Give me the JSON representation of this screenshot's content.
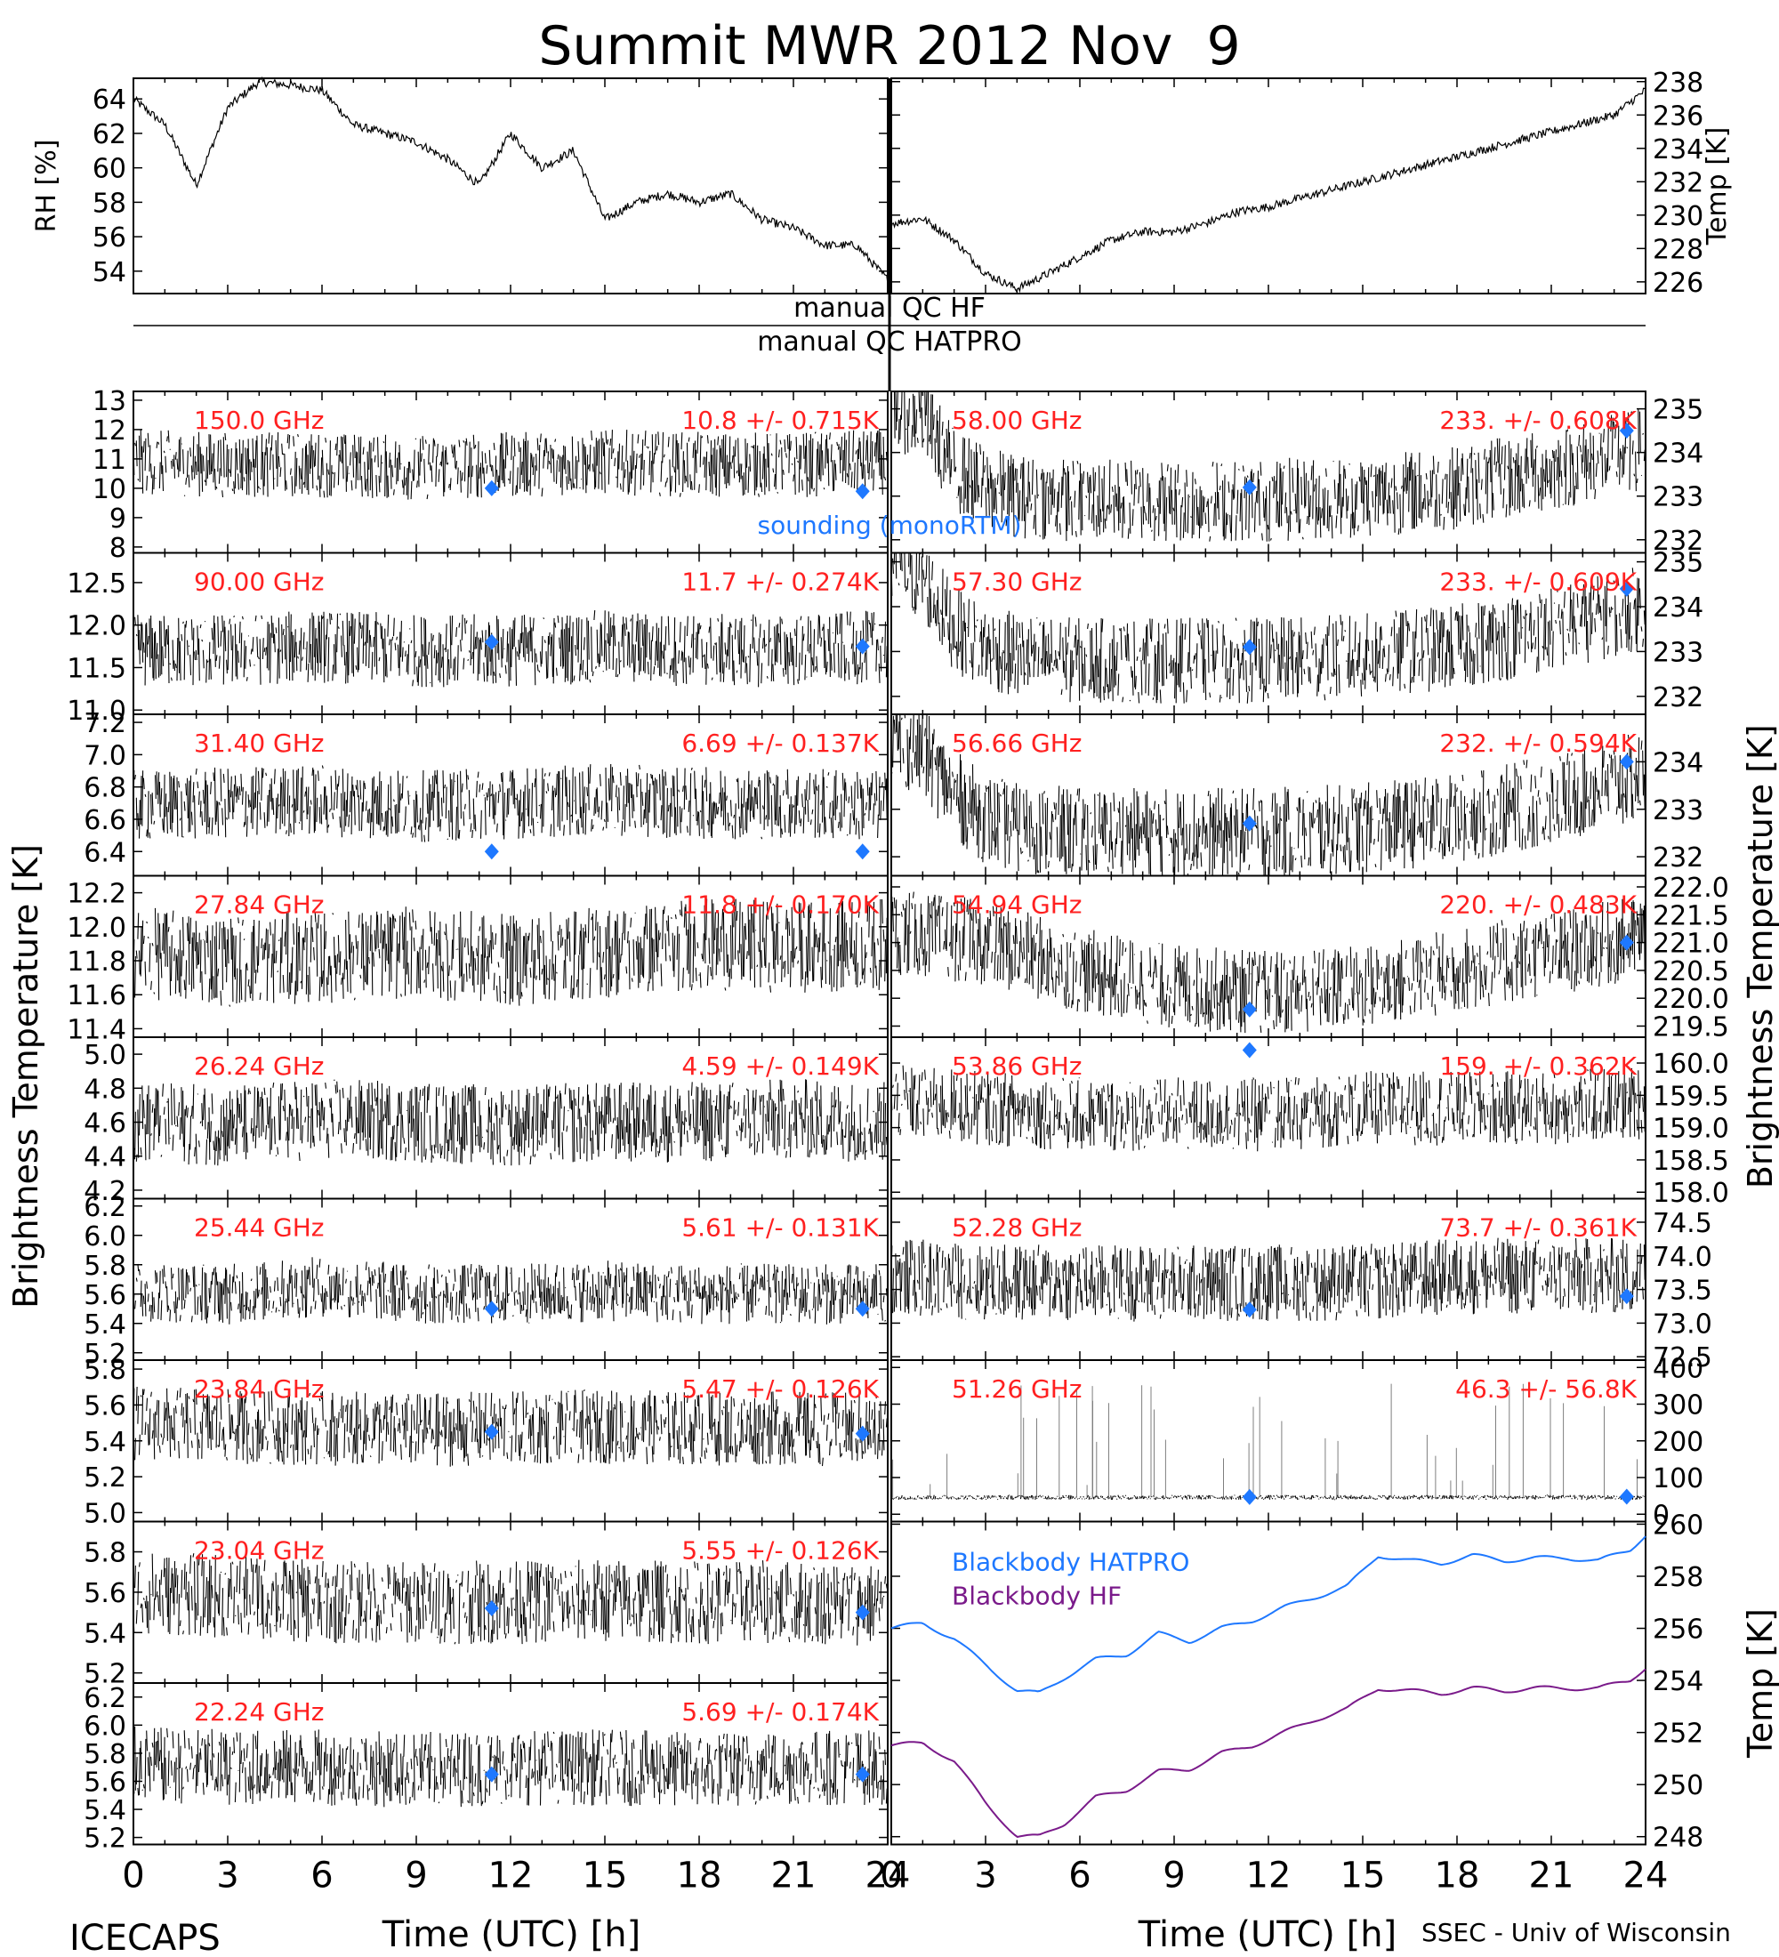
{
  "title": "Summit MWR 2012 Nov  9",
  "footer": {
    "left": "ICECAPS",
    "right": "SSEC - Univ of Wisconsin",
    "xlabel": "Time (UTC) [h]"
  },
  "ylabel_left": "Brightness Temperature [K]",
  "ylabel_right": "Brightness Temperature [K]",
  "qc_labels": {
    "hf": "manual QC HF",
    "hatpro": "manual QC HATPRO"
  },
  "sounding_label": "sounding (monoRTM)",
  "colors": {
    "trace": "#000000",
    "label": "#ff2020",
    "sounding": "#1e78ff",
    "bb_hatpro": "#1e78ff",
    "bb_hf": "#7a1a8a"
  },
  "chart_data": [
    {
      "type": "line",
      "panel": "met-left",
      "ylabel": "RH [%]",
      "xlim": [
        0,
        24
      ],
      "ylim": [
        52.7,
        65.2
      ],
      "yticks": [
        54,
        56,
        58,
        60,
        62,
        64
      ],
      "x": [
        0,
        1,
        2,
        3,
        4,
        5,
        6,
        7,
        8,
        9,
        10,
        11,
        12,
        13,
        14,
        15,
        16,
        17,
        18,
        19,
        20,
        21,
        22,
        23,
        24
      ],
      "values": [
        64,
        62.5,
        59,
        63.5,
        65,
        64.8,
        64.5,
        62.5,
        62,
        61.5,
        60.5,
        59,
        62,
        60,
        61,
        57,
        58,
        58.5,
        58,
        58.5,
        57,
        56.5,
        55.5,
        55.5,
        53.5
      ]
    },
    {
      "type": "line",
      "panel": "met-right",
      "ylabel": "Temp [K]",
      "xlim": [
        0,
        24
      ],
      "ylim": [
        225.3,
        238.2
      ],
      "yticks": [
        226,
        228,
        230,
        232,
        234,
        236,
        238
      ],
      "x": [
        0,
        1,
        2,
        3,
        4,
        5,
        6,
        7,
        8,
        9,
        10,
        11,
        12,
        13,
        14,
        15,
        16,
        17,
        18,
        19,
        20,
        21,
        22,
        23,
        24
      ],
      "values": [
        229.5,
        229.8,
        228.5,
        226.5,
        225.6,
        226.5,
        227.5,
        228.5,
        229,
        229,
        229.5,
        230.2,
        230.5,
        231,
        231.5,
        232,
        232.5,
        233,
        233.5,
        234,
        234.5,
        235,
        235.5,
        236,
        237.5
      ]
    },
    {
      "type": "scatter",
      "panel": "ch-150",
      "freq": "150.0 GHz",
      "stat": "10.8 +/- 0.715K",
      "xlim": [
        0,
        24
      ],
      "ylim": [
        7.8,
        13.3
      ],
      "yticks": [
        "8",
        "9",
        "10",
        "11",
        "12",
        "13"
      ],
      "x": [
        0,
        3,
        6,
        9,
        12,
        15,
        18,
        21,
        24
      ],
      "values": [
        10.9,
        10.8,
        10.8,
        10.7,
        10.8,
        10.9,
        10.8,
        10.8,
        10.9
      ],
      "noise": 0.7,
      "sounding": [
        [
          11.4,
          10.0
        ],
        [
          23.2,
          9.9
        ]
      ]
    },
    {
      "type": "scatter",
      "panel": "ch-90",
      "freq": "90.00 GHz",
      "stat": "11.7 +/- 0.274K",
      "xlim": [
        0,
        24
      ],
      "ylim": [
        10.95,
        12.85
      ],
      "yticks": [
        "11.0",
        "11.5",
        "12.0",
        "12.5"
      ],
      "x": [
        0,
        3,
        6,
        9,
        12,
        15,
        18,
        21,
        24
      ],
      "values": [
        11.7,
        11.7,
        11.75,
        11.7,
        11.7,
        11.75,
        11.7,
        11.7,
        11.75
      ],
      "noise": 0.27,
      "sounding": [
        [
          11.4,
          11.8
        ],
        [
          23.2,
          11.75
        ]
      ]
    },
    {
      "type": "scatter",
      "panel": "ch-31",
      "freq": "31.40 GHz",
      "stat": "6.69 +/- 0.137K",
      "xlim": [
        0,
        24
      ],
      "ylim": [
        6.25,
        7.25
      ],
      "yticks": [
        "6.4",
        "6.6",
        "6.8",
        "7.0",
        "7.2"
      ],
      "x": [
        0,
        3,
        6,
        9,
        12,
        15,
        18,
        21,
        24
      ],
      "values": [
        6.68,
        6.7,
        6.72,
        6.68,
        6.7,
        6.72,
        6.7,
        6.7,
        6.68
      ],
      "noise": 0.14,
      "sounding": [
        [
          11.4,
          6.4
        ],
        [
          23.2,
          6.4
        ]
      ]
    },
    {
      "type": "scatter",
      "panel": "ch-27",
      "freq": "27.84 GHz",
      "stat": "11.8 +/- 0.170K",
      "xlim": [
        0,
        24
      ],
      "ylim": [
        11.35,
        12.3
      ],
      "yticks": [
        "11.4",
        "11.6",
        "11.8",
        "12.0",
        "12.2"
      ],
      "x": [
        0,
        3,
        6,
        9,
        12,
        15,
        18,
        21,
        24
      ],
      "values": [
        11.85,
        11.8,
        11.82,
        11.85,
        11.8,
        11.85,
        11.9,
        11.88,
        11.9
      ],
      "noise": 0.17,
      "sounding": []
    },
    {
      "type": "scatter",
      "panel": "ch-26",
      "freq": "26.24 GHz",
      "stat": "4.59 +/- 0.149K",
      "xlim": [
        0,
        24
      ],
      "ylim": [
        4.15,
        5.1
      ],
      "yticks": [
        "4.2",
        "4.4",
        "4.6",
        "4.8",
        "5.0"
      ],
      "x": [
        0,
        3,
        6,
        9,
        12,
        15,
        18,
        21,
        24
      ],
      "values": [
        4.6,
        4.58,
        4.62,
        4.6,
        4.58,
        4.6,
        4.6,
        4.62,
        4.6
      ],
      "noise": 0.15,
      "sounding": []
    },
    {
      "type": "scatter",
      "panel": "ch-25",
      "freq": "25.44 GHz",
      "stat": "5.61 +/- 0.131K",
      "xlim": [
        0,
        24
      ],
      "ylim": [
        5.15,
        6.25
      ],
      "yticks": [
        "5.2",
        "5.4",
        "5.6",
        "5.8",
        "6.0",
        "6.2"
      ],
      "x": [
        0,
        3,
        6,
        9,
        12,
        15,
        18,
        21,
        24
      ],
      "values": [
        5.62,
        5.6,
        5.65,
        5.6,
        5.6,
        5.62,
        5.6,
        5.6,
        5.6
      ],
      "noise": 0.13,
      "sounding": [
        [
          11.4,
          5.5
        ],
        [
          23.2,
          5.5
        ]
      ]
    },
    {
      "type": "scatter",
      "panel": "ch-23.84",
      "freq": "23.84 GHz",
      "stat": "5.47 +/- 0.126K",
      "xlim": [
        0,
        24
      ],
      "ylim": [
        4.95,
        5.85
      ],
      "yticks": [
        "5.0",
        "5.2",
        "5.4",
        "5.6",
        "5.8"
      ],
      "x": [
        0,
        3,
        6,
        9,
        12,
        15,
        18,
        21,
        24
      ],
      "values": [
        5.5,
        5.48,
        5.47,
        5.46,
        5.47,
        5.48,
        5.47,
        5.47,
        5.46
      ],
      "noise": 0.13,
      "sounding": [
        [
          11.4,
          5.45
        ],
        [
          23.2,
          5.44
        ]
      ]
    },
    {
      "type": "scatter",
      "panel": "ch-23.04",
      "freq": "23.04 GHz",
      "stat": "5.55 +/- 0.126K",
      "xlim": [
        0,
        24
      ],
      "ylim": [
        5.15,
        5.95
      ],
      "yticks": [
        "5.2",
        "5.4",
        "5.6",
        "5.8"
      ],
      "x": [
        0,
        3,
        6,
        9,
        12,
        15,
        18,
        21,
        24
      ],
      "values": [
        5.6,
        5.58,
        5.55,
        5.55,
        5.55,
        5.56,
        5.55,
        5.55,
        5.54
      ],
      "noise": 0.13,
      "sounding": [
        [
          11.4,
          5.52
        ],
        [
          23.2,
          5.5
        ]
      ]
    },
    {
      "type": "scatter",
      "panel": "ch-22.24",
      "freq": "22.24 GHz",
      "stat": "5.69 +/- 0.174K",
      "xlim": [
        0,
        24
      ],
      "ylim": [
        5.15,
        6.3
      ],
      "yticks": [
        "5.2",
        "5.4",
        "5.6",
        "5.8",
        "6.0",
        "6.2"
      ],
      "x": [
        0,
        3,
        6,
        9,
        12,
        15,
        18,
        21,
        24
      ],
      "values": [
        5.72,
        5.7,
        5.7,
        5.68,
        5.7,
        5.7,
        5.68,
        5.7,
        5.7
      ],
      "noise": 0.17,
      "sounding": [
        [
          11.4,
          5.65
        ],
        [
          23.2,
          5.65
        ]
      ]
    },
    {
      "type": "scatter",
      "panel": "ch-58",
      "freq": "58.00 GHz",
      "stat": "233. +/- 0.608K",
      "xlim": [
        0,
        24
      ],
      "ylim": [
        231.7,
        235.4
      ],
      "yticks": [
        "232",
        "233",
        "234",
        "235"
      ],
      "x": [
        0,
        1,
        2,
        3,
        4,
        6,
        9,
        12,
        15,
        18,
        21,
        24
      ],
      "values": [
        235,
        234.8,
        233.6,
        233.2,
        233.0,
        232.9,
        232.9,
        232.9,
        233.0,
        233.2,
        233.6,
        234.1
      ],
      "noise": 0.6,
      "sounding": [
        [
          11.4,
          233.2
        ],
        [
          23.4,
          234.5
        ]
      ]
    },
    {
      "type": "scatter",
      "panel": "ch-57.3",
      "freq": "57.30 GHz",
      "stat": "233. +/- 0.609K",
      "xlim": [
        0,
        24
      ],
      "ylim": [
        231.6,
        235.2
      ],
      "yticks": [
        "232",
        "233",
        "234",
        "235"
      ],
      "x": [
        0,
        1,
        2,
        3,
        4,
        6,
        9,
        12,
        15,
        18,
        21,
        24
      ],
      "values": [
        234.9,
        234.6,
        233.5,
        233.1,
        232.9,
        232.8,
        232.8,
        232.8,
        232.9,
        233.1,
        233.5,
        234.0
      ],
      "noise": 0.6,
      "sounding": [
        [
          11.4,
          233.1
        ],
        [
          23.4,
          234.4
        ]
      ]
    },
    {
      "type": "scatter",
      "panel": "ch-56.66",
      "freq": "56.66 GHz",
      "stat": "232. +/- 0.594K",
      "xlim": [
        0,
        24
      ],
      "ylim": [
        231.6,
        235.0
      ],
      "yticks": [
        "232",
        "233",
        "234"
      ],
      "x": [
        0,
        1,
        2,
        3,
        4,
        6,
        9,
        12,
        15,
        18,
        21,
        24
      ],
      "values": [
        234.5,
        234.2,
        233.3,
        232.8,
        232.6,
        232.5,
        232.5,
        232.5,
        232.6,
        232.8,
        233.2,
        233.7
      ],
      "noise": 0.6,
      "sounding": [
        [
          11.4,
          232.7
        ],
        [
          23.4,
          234.0
        ]
      ]
    },
    {
      "type": "scatter",
      "panel": "ch-54.94",
      "freq": "54.94 GHz",
      "stat": "220. +/- 0.483K",
      "xlim": [
        0,
        24
      ],
      "ylim": [
        219.3,
        222.2
      ],
      "yticks": [
        "219.5",
        "220.0",
        "220.5",
        "221.0",
        "221.5",
        "222.0"
      ],
      "x": [
        0,
        3,
        6,
        9,
        12,
        15,
        18,
        21,
        24
      ],
      "values": [
        221.2,
        221.0,
        220.5,
        220.2,
        220.1,
        220.2,
        220.5,
        220.8,
        221.1
      ],
      "noise": 0.48,
      "sounding": [
        [
          11.4,
          219.8
        ],
        [
          23.4,
          221.0
        ]
      ]
    },
    {
      "type": "scatter",
      "panel": "ch-53.86",
      "freq": "53.86 GHz",
      "stat": "159. +/- 0.362K",
      "xlim": [
        0,
        24
      ],
      "ylim": [
        157.9,
        160.4
      ],
      "yticks": [
        "158.0",
        "158.5",
        "159.0",
        "159.5",
        "160.0"
      ],
      "x": [
        0,
        3,
        6,
        9,
        12,
        15,
        18,
        21,
        24
      ],
      "values": [
        159.4,
        159.3,
        159.2,
        159.2,
        159.2,
        159.3,
        159.3,
        159.3,
        159.4
      ],
      "noise": 0.36,
      "sounding": [
        [
          11.4,
          160.2
        ]
      ]
    },
    {
      "type": "scatter",
      "panel": "ch-52.28",
      "freq": "52.28 GHz",
      "stat": "73.7 +/- 0.361K",
      "xlim": [
        0,
        24
      ],
      "ylim": [
        72.45,
        74.85
      ],
      "yticks": [
        "72.5",
        "73.0",
        "73.5",
        "74.0",
        "74.5"
      ],
      "x": [
        0,
        3,
        6,
        9,
        12,
        15,
        18,
        21,
        24
      ],
      "values": [
        73.7,
        73.6,
        73.6,
        73.6,
        73.6,
        73.6,
        73.7,
        73.7,
        73.7
      ],
      "noise": 0.36,
      "sounding": [
        [
          11.4,
          73.2
        ],
        [
          23.4,
          73.4
        ]
      ]
    },
    {
      "type": "scatter",
      "panel": "ch-51.26",
      "freq": "51.26 GHz",
      "stat": "46.3 +/- 56.8K",
      "xlim": [
        0,
        24
      ],
      "ylim": [
        -20,
        420
      ],
      "yticks": [
        "0",
        "100",
        "200",
        "300",
        "400"
      ],
      "x": [
        0,
        24
      ],
      "values": [
        46,
        46
      ],
      "noise": 4,
      "sounding": [
        [
          11.4,
          47
        ],
        [
          23.4,
          48
        ]
      ]
    },
    {
      "type": "line",
      "panel": "blackbody",
      "ylabel": "Temp [K]",
      "xlim": [
        0,
        24
      ],
      "ylim": [
        247.7,
        260.1
      ],
      "yticks": [
        "248",
        "250",
        "252",
        "254",
        "256",
        "258",
        "260"
      ],
      "series": [
        {
          "name": "Blackbody HATPRO",
          "x": [
            0,
            1,
            2,
            3,
            4,
            4.7,
            5.5,
            6.5,
            7.5,
            8.5,
            9.5,
            10.5,
            11.5,
            12.5,
            13.5,
            14.5,
            15.5,
            16.5,
            17.5,
            18.5,
            19.5,
            20.5,
            21.5,
            22.5,
            23.5,
            24
          ],
          "values": [
            256,
            256.2,
            255.6,
            254.6,
            253.6,
            253.5,
            254.1,
            254.8,
            255.0,
            255.8,
            255.5,
            256,
            256.3,
            256.8,
            257.2,
            257.6,
            258.8,
            258.6,
            258.5,
            258.8,
            258.6,
            258.7,
            258.7,
            258.6,
            259.0,
            259.6
          ]
        },
        {
          "name": "Blackbody HF",
          "x": [
            0,
            1,
            2,
            3,
            4,
            4.7,
            5.5,
            6.5,
            7.5,
            8.5,
            9.5,
            10.5,
            11.5,
            12.5,
            13.5,
            14.5,
            15.5,
            16.5,
            17.5,
            18.5,
            19.5,
            20.5,
            21.5,
            22.5,
            23.5,
            24
          ],
          "values": [
            251.5,
            251.6,
            250.9,
            249.3,
            248.0,
            248.0,
            248.5,
            249.5,
            249.8,
            250.5,
            250.6,
            251.2,
            251.5,
            252,
            252.5,
            252.9,
            253.7,
            253.6,
            253.5,
            253.7,
            253.6,
            253.7,
            253.7,
            253.7,
            254.0,
            254.5
          ]
        }
      ]
    }
  ],
  "xticks": [
    "0",
    "3",
    "6",
    "9",
    "12",
    "15",
    "18",
    "21",
    "24"
  ]
}
